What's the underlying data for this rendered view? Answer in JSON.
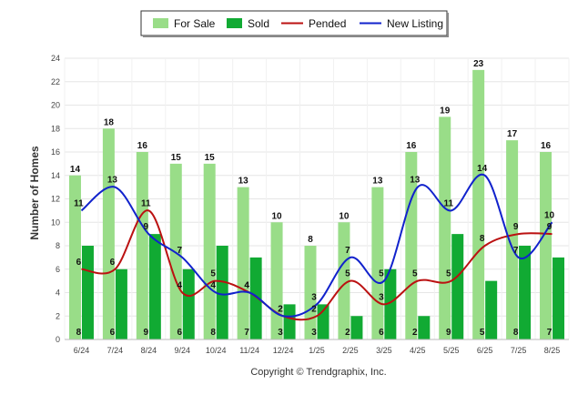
{
  "chart_data": {
    "type": "bar",
    "categories": [
      "6/24",
      "7/24",
      "8/24",
      "9/24",
      "10/24",
      "11/24",
      "12/24",
      "1/25",
      "2/25",
      "3/25",
      "4/25",
      "5/25",
      "6/25",
      "7/25",
      "8/25"
    ],
    "ylabel": "Number of Homes",
    "ylim": [
      0,
      24
    ],
    "yticks": [
      0,
      2,
      4,
      6,
      8,
      10,
      12,
      14,
      16,
      18,
      20,
      22,
      24
    ],
    "grid": true,
    "legend_position": "top-center",
    "series": [
      {
        "name": "For Sale",
        "kind": "bar",
        "color": "#99dd88",
        "values": [
          14,
          18,
          16,
          15,
          15,
          13,
          10,
          8,
          10,
          13,
          16,
          19,
          23,
          17,
          16
        ]
      },
      {
        "name": "Sold",
        "kind": "bar",
        "color": "#11aa33",
        "values": [
          8,
          6,
          9,
          6,
          8,
          7,
          3,
          3,
          2,
          6,
          2,
          9,
          5,
          8,
          7
        ]
      },
      {
        "name": "Pended",
        "kind": "line",
        "color": "#bb1111",
        "values": [
          6,
          6,
          11,
          4,
          5,
          4,
          2,
          2,
          5,
          3,
          5,
          5,
          8,
          9,
          9
        ]
      },
      {
        "name": "New Listing",
        "kind": "line",
        "color": "#1122cc",
        "values": [
          11,
          13,
          9,
          7,
          4,
          4,
          2,
          3,
          7,
          5,
          13,
          11,
          14,
          7,
          10
        ]
      }
    ],
    "footer": "Copyright © Trendgraphix, Inc."
  }
}
